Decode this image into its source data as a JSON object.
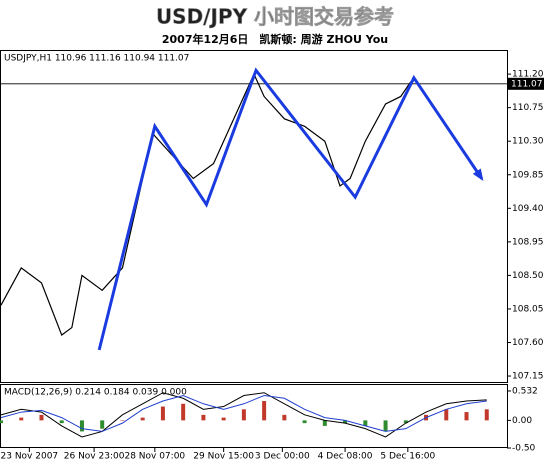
{
  "title": "USD/JPY 小时图交易参考",
  "subtitle": "2007年12月6日　凯斯顿: 周游 ZHOU You",
  "chart_data": [
    {
      "type": "line",
      "header": "USDJPY,H1  110.96 111.16 110.94 111.07",
      "last": 111.07,
      "xlim": [
        0,
        125
      ],
      "xticks": [
        {
          "value": 7,
          "label": "23 Nov 2007"
        },
        {
          "value": 23,
          "label": "26 Nov 23:00"
        },
        {
          "value": 38,
          "label": "28 Nov 07:00"
        },
        {
          "value": 55,
          "label": "29 Nov 15:00"
        },
        {
          "value": 69.5,
          "label": "3 Dec 00:00"
        },
        {
          "value": 85,
          "label": "4 Dec 08:00"
        },
        {
          "value": 100.5,
          "label": "5 Dec 16:00"
        }
      ],
      "ylim": [
        107.07,
        111.51
      ],
      "yticks": [
        {
          "value": 111.2,
          "label": "111.20"
        },
        110.75,
        {
          "value": 110.3,
          "label": "110.30"
        },
        109.85,
        {
          "value": 109.4,
          "label": "109.40"
        },
        108.95,
        {
          "value": 108.5,
          "label": "108.50"
        },
        108.05,
        {
          "value": 107.6,
          "label": "107.60"
        },
        107.15
      ],
      "series": [
        {
          "color": "#000000",
          "x": [
            0,
            5,
            10,
            15,
            17.5,
            20,
            25,
            30,
            35,
            37.5,
            42.5,
            47.5,
            52.5,
            57.5,
            62.5,
            65,
            70,
            75,
            80,
            83.75,
            86.25,
            90,
            95,
            98.75,
            101.25
          ],
          "values": [
            108.1,
            108.6,
            108.4,
            107.7,
            107.8,
            108.5,
            108.3,
            108.6,
            109.8,
            110.4,
            110.1,
            109.8,
            110.0,
            110.6,
            111.2,
            110.9,
            110.6,
            110.5,
            110.3,
            109.7,
            109.8,
            110.3,
            110.8,
            110.9,
            111.1
          ]
        },
        {
          "color": "#1a3be0",
          "x": [
            24.25,
            38,
            50.75,
            63,
            87.5,
            102,
            118.75
          ],
          "values": [
            107.5,
            110.5,
            109.45,
            111.25,
            109.55,
            111.15,
            109.8
          ]
        }
      ]
    },
    {
      "type": "bar",
      "header": "MACD(12,26,9) 0.214 0.184 0.039 0.000",
      "xlim": [
        0,
        125
      ],
      "ylim": [
        -0.5,
        0.64
      ],
      "yticks": [
        0.532,
        {
          "value": 0,
          "label": "0.00"
        },
        {
          "value": -0.5,
          "label": "-0.50"
        }
      ],
      "up_color": "#c0392b",
      "down_color": "#2e8b2e",
      "x": [
        0,
        5,
        10,
        15,
        20,
        25,
        30,
        35,
        40,
        45,
        50,
        55,
        60,
        65,
        70,
        75,
        80,
        85,
        90,
        95,
        100,
        105,
        110,
        115,
        120
      ],
      "values": [
        -0.05,
        0.05,
        0.1,
        -0.05,
        -0.2,
        -0.15,
        0.0,
        0.05,
        0.25,
        0.3,
        0.1,
        0.05,
        0.2,
        0.35,
        0.1,
        -0.05,
        -0.1,
        -0.05,
        -0.1,
        -0.2,
        -0.05,
        0.1,
        0.2,
        0.15,
        0.2
      ],
      "lines": [
        {
          "color": "#000000",
          "values": [
            0.1,
            0.2,
            0.15,
            -0.1,
            -0.3,
            -0.2,
            0.1,
            0.3,
            0.5,
            0.4,
            0.2,
            0.25,
            0.45,
            0.5,
            0.3,
            0.1,
            0.0,
            -0.05,
            -0.15,
            -0.3,
            -0.05,
            0.15,
            0.3,
            0.35,
            0.37
          ]
        },
        {
          "color": "#2040d0",
          "values": [
            0.05,
            0.15,
            0.18,
            0.05,
            -0.15,
            -0.2,
            -0.05,
            0.2,
            0.35,
            0.45,
            0.3,
            0.2,
            0.3,
            0.45,
            0.4,
            0.2,
            0.05,
            0.0,
            -0.1,
            -0.2,
            -0.15,
            0.05,
            0.2,
            0.3,
            0.35
          ]
        }
      ]
    }
  ]
}
